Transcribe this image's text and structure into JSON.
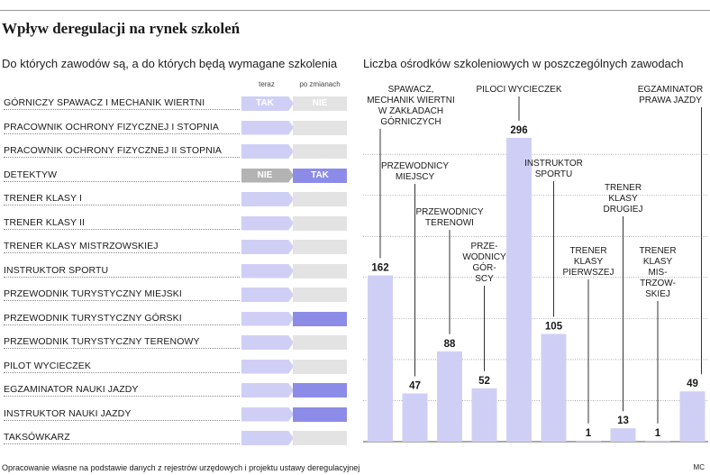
{
  "title": "Wpływ deregulacji na rynek szkoleń",
  "left_panel": {
    "subtitle": "Do których zawodów są, a do których będą wymagane szkolenia",
    "col_now": "teraz",
    "col_after": "po zmianach",
    "rows": [
      {
        "label": "GÓRNICZY SPAWACZ I MECHANIK WIERTNI",
        "now": "TAK",
        "after": "NIE",
        "now_req": true,
        "after_req": false
      },
      {
        "label": "PRACOWNIK OCHRONY FIZYCZNEJ I STOPNIA",
        "now": "",
        "after": "",
        "now_req": true,
        "after_req": false
      },
      {
        "label": "PRACOWNIK OCHRONY FIZYCZNEJ II STOPNIA",
        "now": "",
        "after": "",
        "now_req": true,
        "after_req": false
      },
      {
        "label": "DETEKTYW",
        "now": "NIE",
        "after": "TAK",
        "now_req": false,
        "after_req": true
      },
      {
        "label": "TRENER KLASY I",
        "now": "",
        "after": "",
        "now_req": true,
        "after_req": false
      },
      {
        "label": "TRENER KLASY II",
        "now": "",
        "after": "",
        "now_req": true,
        "after_req": false
      },
      {
        "label": "TRENER KLASY MISTRZOWSKIEJ",
        "now": "",
        "after": "",
        "now_req": true,
        "after_req": false
      },
      {
        "label": "INSTRUKTOR SPORTU",
        "now": "",
        "after": "",
        "now_req": true,
        "after_req": false
      },
      {
        "label": "PRZEWODNIK TURYSTYCZNY MIEJSKI",
        "now": "",
        "after": "",
        "now_req": true,
        "after_req": false
      },
      {
        "label": "PRZEWODNIK TURYSTYCZNY GÓRSKI",
        "now": "",
        "after": "",
        "now_req": true,
        "after_req": true
      },
      {
        "label": "PRZEWODNIK TURYSTYCZNY TERENOWY",
        "now": "",
        "after": "",
        "now_req": true,
        "after_req": false
      },
      {
        "label": "PILOT WYCIECZEK",
        "now": "",
        "after": "",
        "now_req": true,
        "after_req": false
      },
      {
        "label": "EGZAMINATOR NAUKI JAZDY",
        "now": "",
        "after": "",
        "now_req": true,
        "after_req": true
      },
      {
        "label": "INSTRUKTOR NAUKI JAZDY",
        "now": "",
        "after": "",
        "now_req": true,
        "after_req": true
      },
      {
        "label": "TAKSÓWKARZ",
        "now": "",
        "after": "",
        "now_req": true,
        "after_req": false
      }
    ]
  },
  "chart_data": {
    "type": "bar",
    "title": "Liczba ośrodków szkoleniowych w poszczególnych zawodach",
    "categories": [
      "SPAWACZ,\nMECHANIK WIERTNI\nW ZAKŁADACH\nGÓRNICZYCH",
      "PRZEWODNICY\nMIEJSCY",
      "PRZEWODNICY\nTERENOWI",
      "PRZE-\nWODNICY\nGÓR-\nSCY",
      "PILOCI WYCIECZEK",
      "INSTRUKTOR\nSPORTU",
      "TRENER\nKLASY\nPIERWSZEJ",
      "TRENER\nKLASY\nDRUGIEJ",
      "TRENER\nKLASY\nMIS-\nTRZOW-\nSKIEJ",
      "EGZAMINATOR\nPRAWA JAZDY"
    ],
    "values": [
      162,
      47,
      88,
      52,
      296,
      105,
      1,
      13,
      1,
      49
    ],
    "ylim": [
      0,
      320
    ],
    "grid": true,
    "bar_color": "#cfcff6"
  },
  "footer": {
    "source": "Opracowanie własne na podstawie danych z rejestrów urzędowych i projektu ustawy deregulacyjnej",
    "credit": "MC"
  }
}
